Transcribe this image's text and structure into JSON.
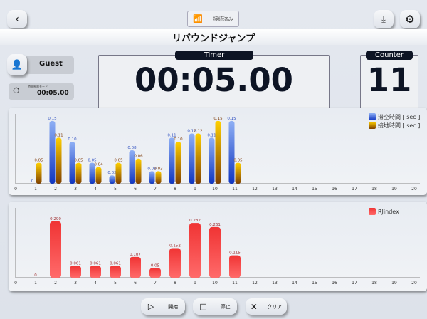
{
  "header": {
    "connection_label": "接続済み",
    "title": "リバウンドジャンプ"
  },
  "user": {
    "name": "Guest",
    "mode_label": "時間制限モード",
    "mode_time": "00:05.00"
  },
  "timer": {
    "label": "Timer",
    "value": "00:05.00"
  },
  "counter": {
    "label": "Counter",
    "value": "11"
  },
  "buttons": {
    "start": "開始",
    "stop": "停止",
    "clear": "クリア"
  },
  "chart_data": [
    {
      "type": "bar",
      "x": [
        1,
        2,
        3,
        4,
        5,
        6,
        7,
        8,
        9,
        10,
        11
      ],
      "xlim": [
        0,
        20
      ],
      "ylim": [
        0,
        0.165
      ],
      "legend": "top-right",
      "series": [
        {
          "name": "滞空時間 [ sec ]",
          "color": "#3a66e0",
          "values": [
            0,
            0.15,
            0.1,
            0.05,
            0.02,
            0.08,
            0.03,
            0.11,
            0.12,
            0.11,
            0.15
          ],
          "labels": [
            "0",
            "0.15",
            "0.10",
            "0.05",
            "0.02",
            "0.08",
            "0.03",
            "0.11",
            "0.12",
            "0.11",
            "0.15"
          ]
        },
        {
          "name": "接地時間 [ sec ]",
          "color": "#e8b000",
          "values": [
            0.05,
            0.11,
            0.05,
            0.04,
            0.05,
            0.06,
            0.03,
            0.1,
            0.12,
            0.15,
            0.05
          ],
          "labels": [
            "0.05",
            "0.11",
            "0.05",
            "0.04",
            "0.05",
            "0.06",
            "0.03",
            "0.10",
            "0.12",
            "0.15",
            "0.05"
          ]
        }
      ]
    },
    {
      "type": "bar",
      "x": [
        1,
        2,
        3,
        4,
        5,
        6,
        7,
        8,
        9,
        10,
        11
      ],
      "xlim": [
        0,
        20
      ],
      "ylim": [
        0,
        0.33
      ],
      "legend": "top-right",
      "series": [
        {
          "name": "RJindex",
          "color": "#f04848",
          "values": [
            0,
            0.29,
            0.061,
            0.061,
            0.061,
            0.107,
            0.05,
            0.152,
            0.282,
            0.261,
            0.115
          ],
          "labels": [
            "0",
            "0.290",
            "0.061",
            "0.061",
            "0.061",
            "0.107",
            "0.05",
            "0.152",
            "0.282",
            "0.261",
            "0.115"
          ]
        }
      ]
    }
  ]
}
